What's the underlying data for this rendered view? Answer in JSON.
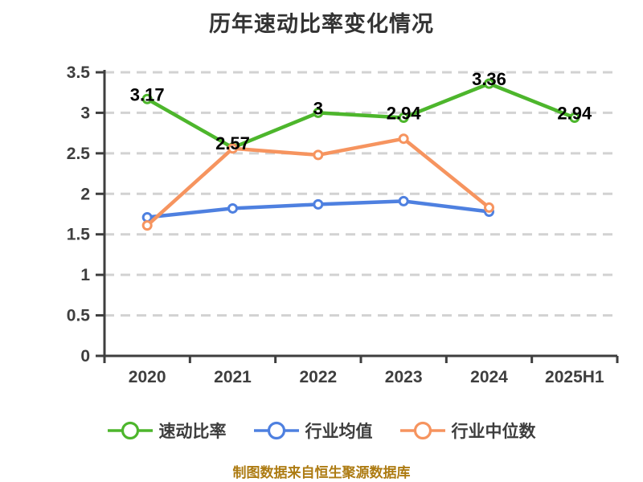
{
  "chart_data": {
    "type": "line",
    "title": "历年速动比率变化情况",
    "categories": [
      "2020",
      "2021",
      "2022",
      "2023",
      "2024",
      "2025H1"
    ],
    "y_axis": {
      "min": 0,
      "max": 3.5,
      "tick_values": [
        0,
        0.5,
        1,
        1.5,
        2,
        2.5,
        3,
        3.5
      ],
      "tick_labels": [
        "0",
        "0.5",
        "1",
        "1.5",
        "2",
        "2.5",
        "3",
        "3.5"
      ]
    },
    "grid_style": "dashed-horizontal",
    "legend_position": "bottom",
    "marker_style": "hollow-circle",
    "series": [
      {
        "name": "速动比率",
        "color": "#4db62c",
        "values": [
          3.17,
          2.57,
          3,
          2.94,
          3.36,
          2.94
        ],
        "point_labels": [
          "3.17",
          "2.57",
          "3",
          "2.94",
          "3.36",
          "2.94"
        ]
      },
      {
        "name": "行业均值",
        "color": "#4e80e0",
        "values": [
          1.71,
          1.82,
          1.87,
          1.91,
          1.78,
          null
        ]
      },
      {
        "name": "行业中位数",
        "color": "#f6945f",
        "values": [
          1.61,
          2.56,
          2.48,
          2.68,
          1.83,
          null
        ]
      }
    ]
  },
  "footer": {
    "source_note": "制图数据来自恒生聚源数据库",
    "color": "#ad7b12"
  },
  "colors": {
    "background": "#ffffff",
    "grid": "#d2d2d2",
    "axis": "#3e3e3e",
    "title": "#333333",
    "data_label": "#000000",
    "legend_text": "#3d3d3d"
  }
}
